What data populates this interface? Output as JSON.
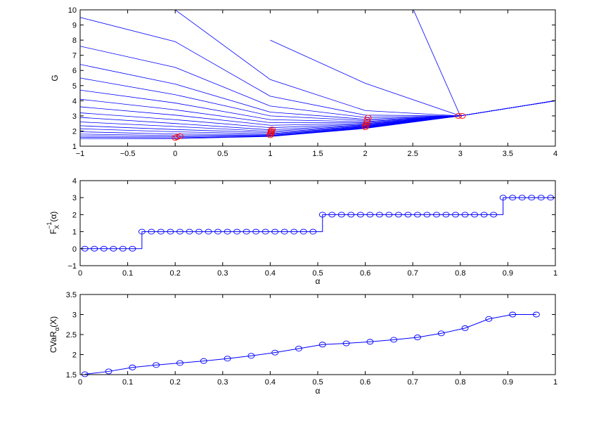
{
  "chart_data": [
    {
      "type": "line",
      "ylabel": "G",
      "xlabel": "",
      "xlim": [
        -1,
        4
      ],
      "ylim": [
        1,
        10
      ],
      "xticks": [
        -1,
        -0.5,
        0,
        0.5,
        1,
        1.5,
        2,
        2.5,
        3,
        3.5,
        4
      ],
      "xtick_labels": [
        "−1",
        "−0.5",
        "0",
        "0.5",
        "1",
        "1.5",
        "2",
        "2.5",
        "3",
        "3.5",
        "4"
      ],
      "yticks": [
        1,
        2,
        3,
        4,
        5,
        6,
        7,
        8,
        9,
        10
      ],
      "ytick_labels": [
        "1",
        "2",
        "3",
        "4",
        "5",
        "6",
        "7",
        "8",
        "9",
        "10"
      ],
      "line_color": "#0000ff",
      "marker_color": "#ff0000",
      "x": [
        -1,
        0,
        1,
        2,
        3,
        4
      ],
      "series": [
        {
          "values": [
            null,
            null,
            null,
            17.2,
            3.0,
            4.0
          ]
        },
        {
          "values": [
            null,
            null,
            8.0,
            5.15,
            3.0,
            4.0
          ]
        },
        {
          "values": [
            null,
            10.0,
            5.4,
            3.35,
            3.0,
            4.0
          ]
        },
        {
          "values": [
            9.5,
            7.9,
            4.3,
            3.05,
            3.0,
            4.0
          ]
        },
        {
          "values": [
            7.6,
            6.2,
            3.65,
            2.9,
            3.0,
            4.0
          ]
        },
        {
          "values": [
            6.4,
            5.1,
            3.25,
            2.78,
            3.0,
            4.0
          ]
        },
        {
          "values": [
            5.5,
            4.4,
            3.0,
            2.7,
            3.0,
            4.0
          ]
        },
        {
          "values": [
            4.7,
            3.85,
            2.75,
            2.62,
            3.0,
            4.0
          ]
        },
        {
          "values": [
            4.1,
            3.4,
            2.55,
            2.56,
            3.0,
            4.0
          ]
        },
        {
          "values": [
            3.6,
            3.05,
            2.38,
            2.5,
            3.0,
            4.0
          ]
        },
        {
          "values": [
            3.2,
            2.75,
            2.22,
            2.45,
            3.0,
            4.0
          ]
        },
        {
          "values": [
            2.9,
            2.5,
            2.08,
            2.41,
            3.0,
            4.0
          ]
        },
        {
          "values": [
            2.6,
            2.3,
            1.98,
            2.37,
            3.0,
            4.0
          ]
        },
        {
          "values": [
            2.35,
            2.1,
            1.9,
            2.33,
            3.0,
            4.0
          ]
        },
        {
          "values": [
            2.15,
            1.95,
            1.82,
            2.3,
            3.0,
            4.0
          ]
        },
        {
          "values": [
            1.95,
            1.8,
            1.77,
            2.27,
            3.0,
            4.0
          ]
        },
        {
          "values": [
            1.8,
            1.7,
            1.72,
            2.24,
            3.0,
            4.0
          ]
        },
        {
          "values": [
            1.68,
            1.62,
            1.69,
            2.21,
            3.0,
            4.0
          ]
        },
        {
          "values": [
            1.58,
            1.55,
            1.66,
            2.19,
            3.0,
            4.0
          ]
        },
        {
          "values": [
            1.5,
            1.5,
            1.64,
            2.17,
            3.0,
            4.0
          ]
        }
      ],
      "minima": [
        {
          "x": 0.0,
          "y": 1.55
        },
        {
          "x": 0.02,
          "y": 1.6
        },
        {
          "x": 0.05,
          "y": 1.67
        },
        {
          "x": 1.0,
          "y": 1.72
        },
        {
          "x": 1.0,
          "y": 1.8
        },
        {
          "x": 1.01,
          "y": 1.88
        },
        {
          "x": 1.01,
          "y": 1.95
        },
        {
          "x": 1.01,
          "y": 2.02
        },
        {
          "x": 1.02,
          "y": 2.1
        },
        {
          "x": 2.0,
          "y": 2.25
        },
        {
          "x": 2.0,
          "y": 2.35
        },
        {
          "x": 2.01,
          "y": 2.45
        },
        {
          "x": 2.02,
          "y": 2.58
        },
        {
          "x": 2.02,
          "y": 2.72
        },
        {
          "x": 2.03,
          "y": 2.88
        },
        {
          "x": 2.98,
          "y": 3.0
        },
        {
          "x": 3.02,
          "y": 3.0
        }
      ]
    },
    {
      "type": "line",
      "xlabel": "α",
      "ylabel": "F_X^{-1}(α)",
      "ylabel_main": "F",
      "ylabel_sub": "X",
      "ylabel_sup": "−1",
      "ylabel_tail": "(α)",
      "xlim": [
        0,
        1
      ],
      "ylim": [
        -1,
        4
      ],
      "xticks": [
        0,
        0.1,
        0.2,
        0.3,
        0.4,
        0.5,
        0.6,
        0.7,
        0.8,
        0.9,
        1
      ],
      "xtick_labels": [
        "0",
        "0.1",
        "0.2",
        "0.3",
        "0.4",
        "0.5",
        "0.6",
        "0.7",
        "0.8",
        "0.9",
        "1"
      ],
      "yticks": [
        -1,
        0,
        1,
        2,
        3,
        4
      ],
      "ytick_labels": [
        "−1",
        "0",
        "1",
        "2",
        "3",
        "4"
      ],
      "line_color": "#0000ff",
      "step_x": [
        0,
        0.13,
        0.13,
        0.51,
        0.51,
        0.89,
        0.89,
        1.0
      ],
      "step_y": [
        0,
        0,
        1,
        1,
        2,
        2,
        3,
        3
      ],
      "x": [
        0.01,
        0.03,
        0.05,
        0.07,
        0.09,
        0.11,
        0.13,
        0.15,
        0.17,
        0.19,
        0.21,
        0.23,
        0.25,
        0.27,
        0.29,
        0.31,
        0.33,
        0.35,
        0.37,
        0.39,
        0.41,
        0.43,
        0.45,
        0.47,
        0.49,
        0.51,
        0.53,
        0.55,
        0.57,
        0.59,
        0.61,
        0.63,
        0.65,
        0.67,
        0.69,
        0.71,
        0.73,
        0.75,
        0.77,
        0.79,
        0.81,
        0.83,
        0.85,
        0.87,
        0.89,
        0.91,
        0.93,
        0.95,
        0.97,
        0.99
      ],
      "values": [
        0,
        0,
        0,
        0,
        0,
        0,
        1,
        1,
        1,
        1,
        1,
        1,
        1,
        1,
        1,
        1,
        1,
        1,
        1,
        1,
        1,
        1,
        1,
        1,
        1,
        2,
        2,
        2,
        2,
        2,
        2,
        2,
        2,
        2,
        2,
        2,
        2,
        2,
        2,
        2,
        2,
        2,
        2,
        2,
        3,
        3,
        3,
        3,
        3,
        3
      ]
    },
    {
      "type": "line",
      "xlabel": "α",
      "ylabel": "CVaR_α(X)",
      "ylabel_main": "CVaR",
      "ylabel_sub": "α",
      "ylabel_tail": "(X)",
      "xlim": [
        0,
        1
      ],
      "ylim": [
        1.5,
        3.5
      ],
      "xticks": [
        0,
        0.1,
        0.2,
        0.3,
        0.4,
        0.5,
        0.6,
        0.7,
        0.8,
        0.9,
        1
      ],
      "xtick_labels": [
        "0",
        "0.1",
        "0.2",
        "0.3",
        "0.4",
        "0.5",
        "0.6",
        "0.7",
        "0.8",
        "0.9",
        "1"
      ],
      "yticks": [
        1.5,
        2,
        2.5,
        3,
        3.5
      ],
      "ytick_labels": [
        "1.5",
        "2",
        "2.5",
        "3",
        "3.5"
      ],
      "line_color": "#0000ff",
      "x": [
        0.01,
        0.06,
        0.11,
        0.16,
        0.21,
        0.26,
        0.31,
        0.36,
        0.41,
        0.46,
        0.51,
        0.56,
        0.61,
        0.66,
        0.71,
        0.76,
        0.81,
        0.86,
        0.91,
        0.96
      ],
      "values": [
        1.51,
        1.58,
        1.68,
        1.74,
        1.79,
        1.84,
        1.9,
        1.97,
        2.05,
        2.15,
        2.25,
        2.28,
        2.32,
        2.37,
        2.43,
        2.53,
        2.66,
        2.89,
        3.0,
        3.0
      ]
    }
  ]
}
